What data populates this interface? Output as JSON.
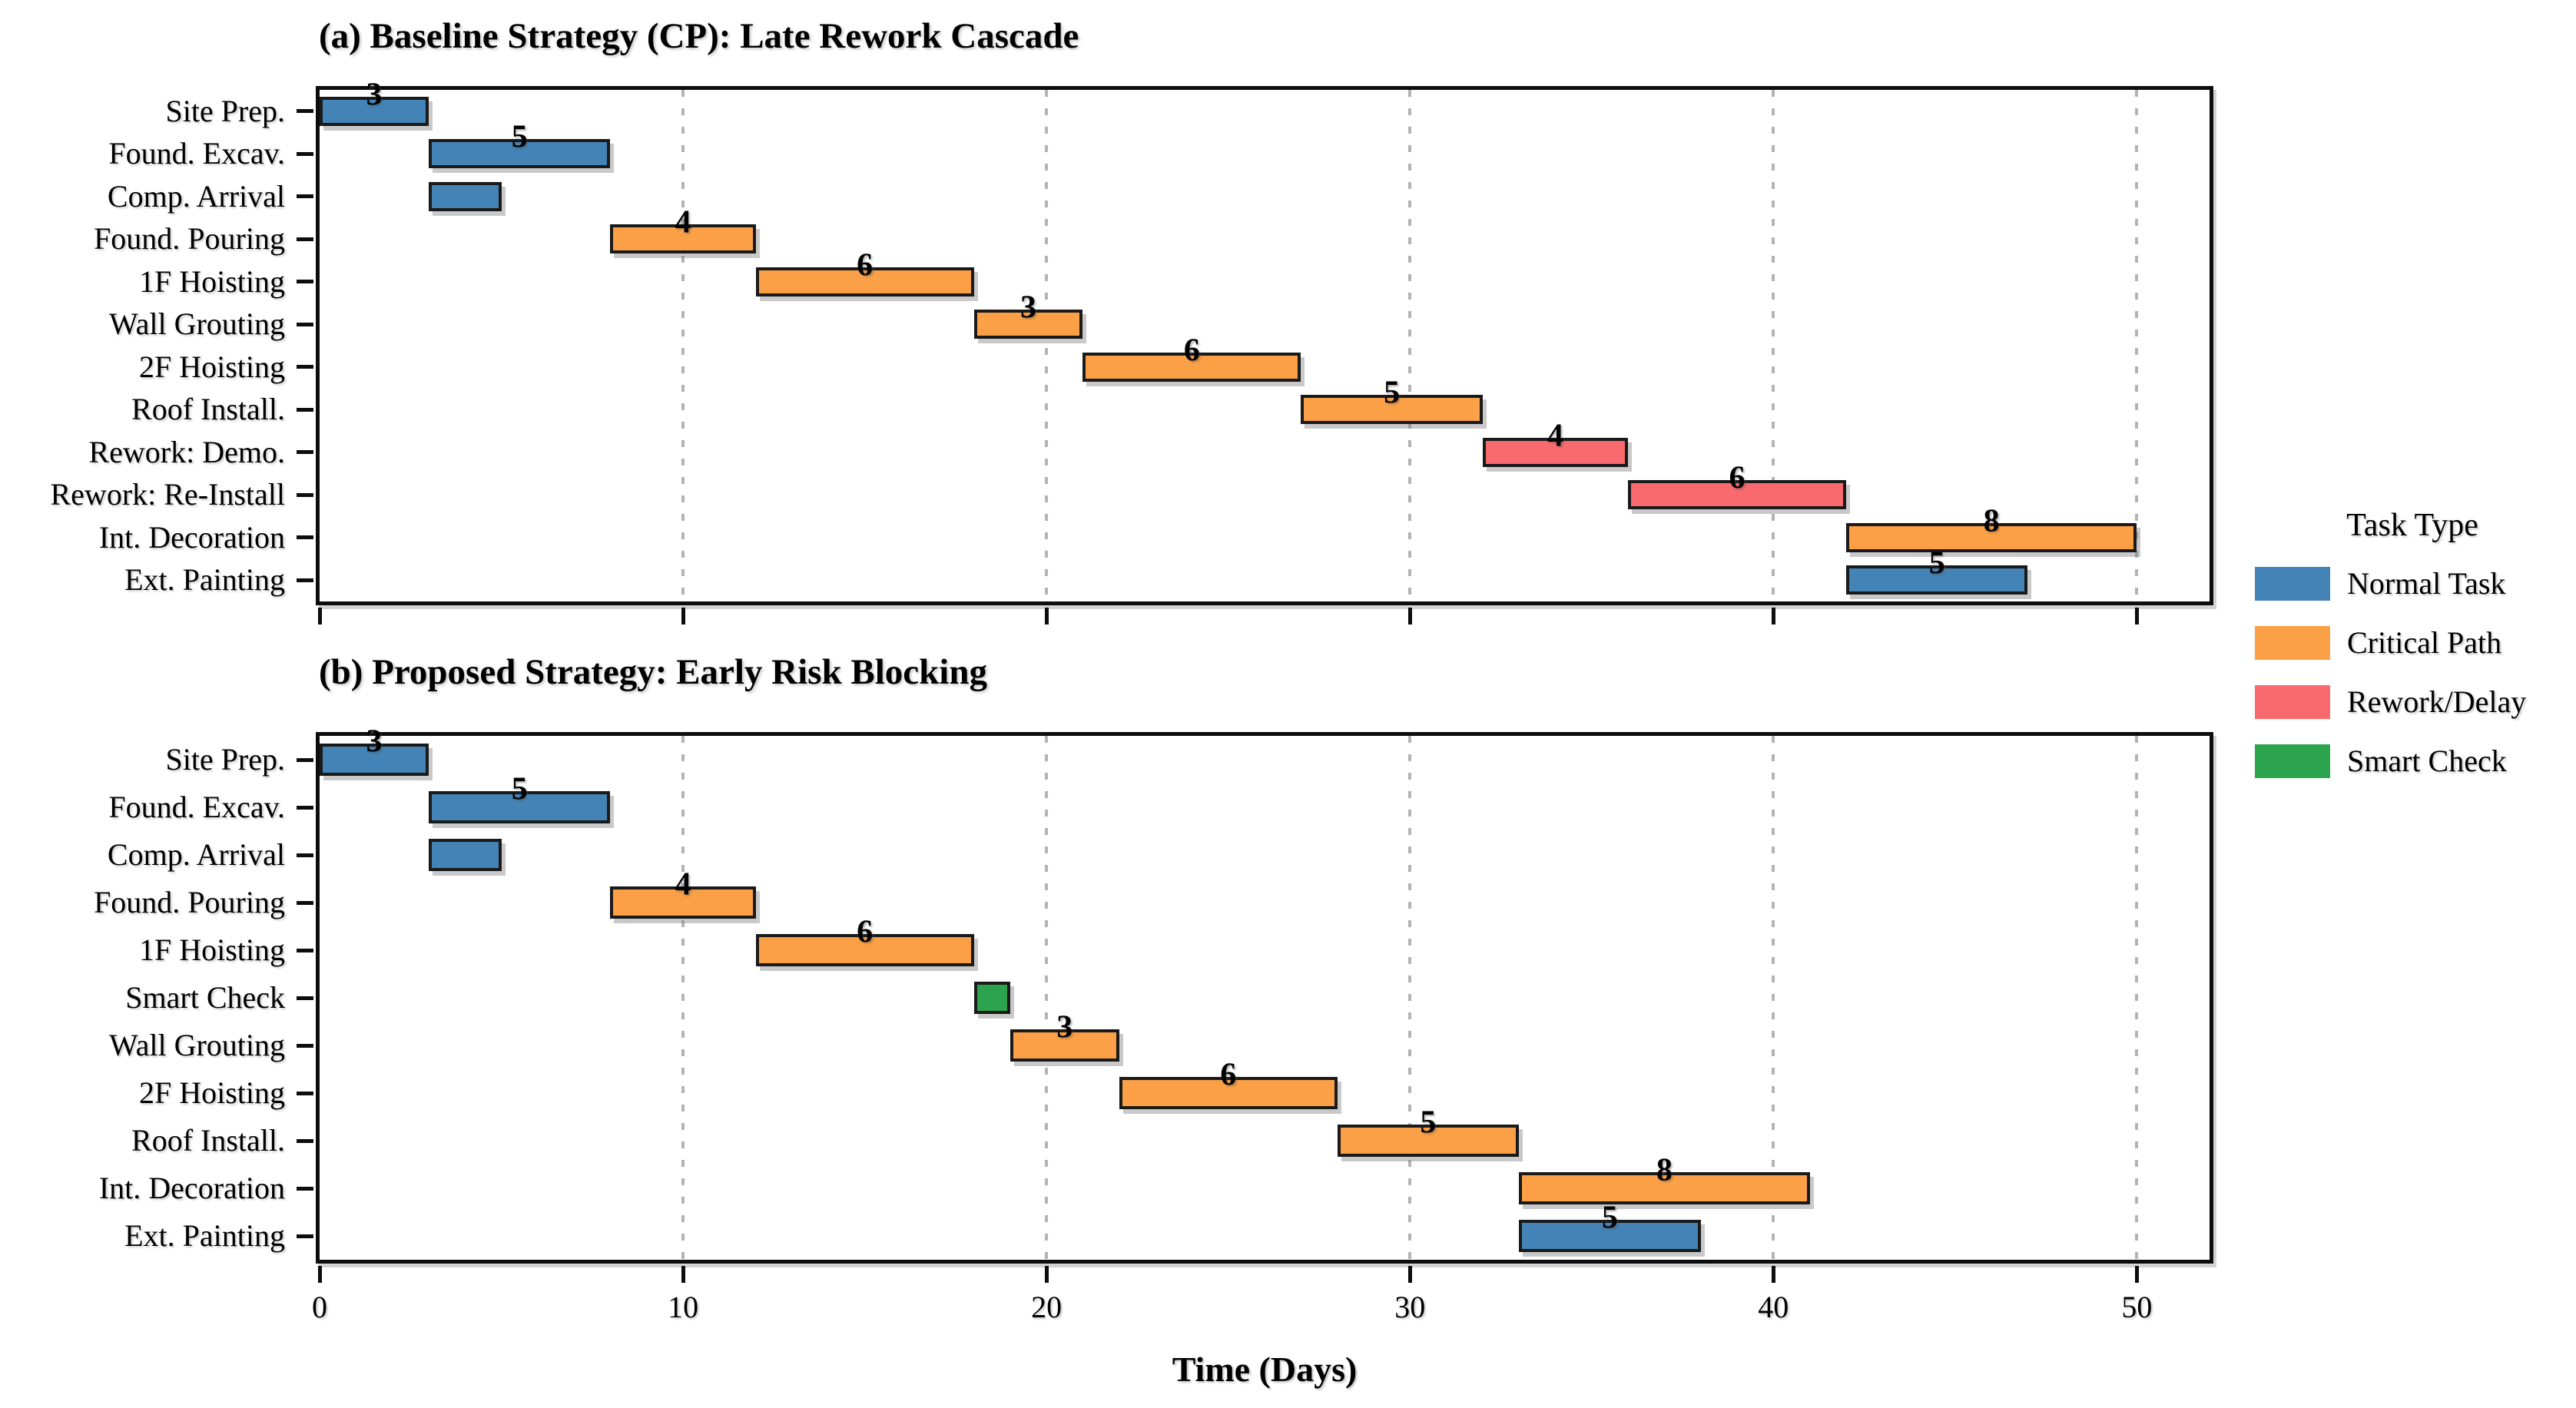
{
  "xlabel": "Time (Days)",
  "legend": {
    "title": "Task Type",
    "entries": [
      {
        "label": "Normal Task",
        "color": "#4383B5"
      },
      {
        "label": "Critical Path",
        "color": "#FBA046"
      },
      {
        "label": "Rework/Delay",
        "color": "#F96A6E"
      },
      {
        "label": "Smart Check",
        "color": "#2CA44E"
      }
    ]
  },
  "task_type_colors": {
    "normal": "#4383B5",
    "critical": "#FBA046",
    "rework": "#F96A6E",
    "check": "#2CA44E"
  },
  "chart_data": [
    {
      "type": "bar",
      "subtype": "gantt",
      "title": "(a) Baseline Strategy (CP): Late Rework Cascade",
      "xlabel": "",
      "ylabel": "",
      "xlim": [
        0,
        52
      ],
      "xticks": [
        0,
        10,
        20,
        30,
        40,
        50
      ],
      "xtick_labels_visible": false,
      "grid": "vertical-dashed",
      "legend_position": "right-of-figure",
      "tasks": [
        {
          "name": "Site Prep.",
          "start": 0,
          "duration": 3,
          "end": 3,
          "type": "normal",
          "bar_label": "3"
        },
        {
          "name": "Found. Excav.",
          "start": 3,
          "duration": 5,
          "end": 8,
          "type": "normal",
          "bar_label": "5"
        },
        {
          "name": "Comp. Arrival",
          "start": 3,
          "duration": 2,
          "end": 5,
          "type": "normal",
          "bar_label": null
        },
        {
          "name": "Found. Pouring",
          "start": 8,
          "duration": 4,
          "end": 12,
          "type": "critical",
          "bar_label": "4"
        },
        {
          "name": "1F Hoisting",
          "start": 12,
          "duration": 6,
          "end": 18,
          "type": "critical",
          "bar_label": "6"
        },
        {
          "name": "Wall Grouting",
          "start": 18,
          "duration": 3,
          "end": 21,
          "type": "critical",
          "bar_label": "3"
        },
        {
          "name": "2F Hoisting",
          "start": 21,
          "duration": 6,
          "end": 27,
          "type": "critical",
          "bar_label": "6"
        },
        {
          "name": "Roof Install.",
          "start": 27,
          "duration": 5,
          "end": 32,
          "type": "critical",
          "bar_label": "5"
        },
        {
          "name": "Rework: Demo.",
          "start": 32,
          "duration": 4,
          "end": 36,
          "type": "rework",
          "bar_label": "4"
        },
        {
          "name": "Rework: Re-Install",
          "start": 36,
          "duration": 6,
          "end": 42,
          "type": "rework",
          "bar_label": "6"
        },
        {
          "name": "Int. Decoration",
          "start": 42,
          "duration": 8,
          "end": 50,
          "type": "critical",
          "bar_label": "8"
        },
        {
          "name": "Ext. Painting",
          "start": 42,
          "duration": 5,
          "end": 47,
          "type": "normal",
          "bar_label": "5"
        }
      ]
    },
    {
      "type": "bar",
      "subtype": "gantt",
      "title": "(b) Proposed Strategy: Early Risk Blocking",
      "xlabel": "Time (Days)",
      "ylabel": "",
      "xlim": [
        0,
        52
      ],
      "xticks": [
        0,
        10,
        20,
        30,
        40,
        50
      ],
      "xtick_labels_visible": true,
      "grid": "vertical-dashed",
      "tasks": [
        {
          "name": "Site Prep.",
          "start": 0,
          "duration": 3,
          "end": 3,
          "type": "normal",
          "bar_label": "3"
        },
        {
          "name": "Found. Excav.",
          "start": 3,
          "duration": 5,
          "end": 8,
          "type": "normal",
          "bar_label": "5"
        },
        {
          "name": "Comp. Arrival",
          "start": 3,
          "duration": 2,
          "end": 5,
          "type": "normal",
          "bar_label": null
        },
        {
          "name": "Found. Pouring",
          "start": 8,
          "duration": 4,
          "end": 12,
          "type": "critical",
          "bar_label": "4"
        },
        {
          "name": "1F Hoisting",
          "start": 12,
          "duration": 6,
          "end": 18,
          "type": "critical",
          "bar_label": "6"
        },
        {
          "name": "Smart Check",
          "start": 18,
          "duration": 1,
          "end": 19,
          "type": "check",
          "bar_label": null
        },
        {
          "name": "Wall Grouting",
          "start": 19,
          "duration": 3,
          "end": 22,
          "type": "critical",
          "bar_label": "3"
        },
        {
          "name": "2F Hoisting",
          "start": 22,
          "duration": 6,
          "end": 28,
          "type": "critical",
          "bar_label": "6"
        },
        {
          "name": "Roof Install.",
          "start": 28,
          "duration": 5,
          "end": 33,
          "type": "critical",
          "bar_label": "5"
        },
        {
          "name": "Int. Decoration",
          "start": 33,
          "duration": 8,
          "end": 41,
          "type": "critical",
          "bar_label": "8"
        },
        {
          "name": "Ext. Painting",
          "start": 33,
          "duration": 5,
          "end": 38,
          "type": "normal",
          "bar_label": "5"
        }
      ]
    }
  ]
}
